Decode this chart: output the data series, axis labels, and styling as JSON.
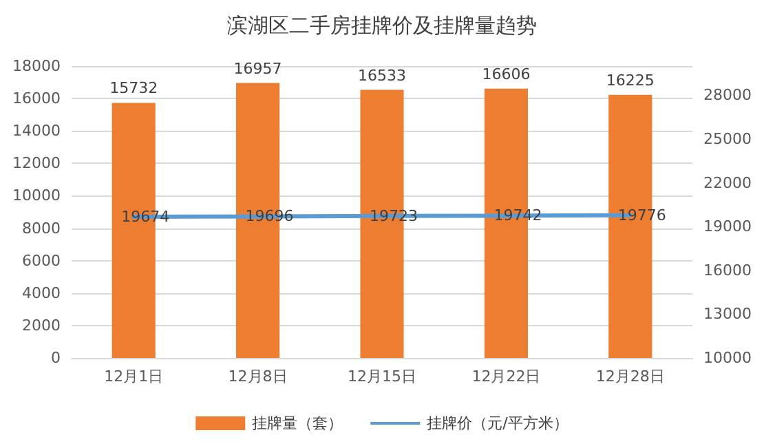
{
  "chart_data": {
    "type": "bar",
    "title": "滨湖区二手房挂牌价及挂牌量趋势",
    "categories": [
      "12月1日",
      "12月8日",
      "12月15日",
      "12月22日",
      "12月28日"
    ],
    "series": [
      {
        "name": "挂牌量（套）",
        "color": "#ed7d31",
        "values": [
          15732,
          16957,
          16533,
          16606,
          16225
        ]
      },
      {
        "name": "挂牌价（元/平方米）",
        "type": "line",
        "axis": "y2",
        "color": "#5b9bd5",
        "values": [
          19674,
          19696,
          19723,
          19742,
          19776
        ],
        "marker": "none"
      }
    ],
    "ylim": [
      0,
      18000
    ],
    "yticks": [
      0,
      2000,
      4000,
      6000,
      8000,
      10000,
      12000,
      14000,
      16000,
      18000
    ],
    "y2lim": [
      10000,
      30000
    ],
    "y2ticks": [
      10000,
      13000,
      16000,
      19000,
      22000,
      25000,
      28000
    ],
    "grid": "y",
    "legend": "bottom",
    "data_labels": true
  }
}
